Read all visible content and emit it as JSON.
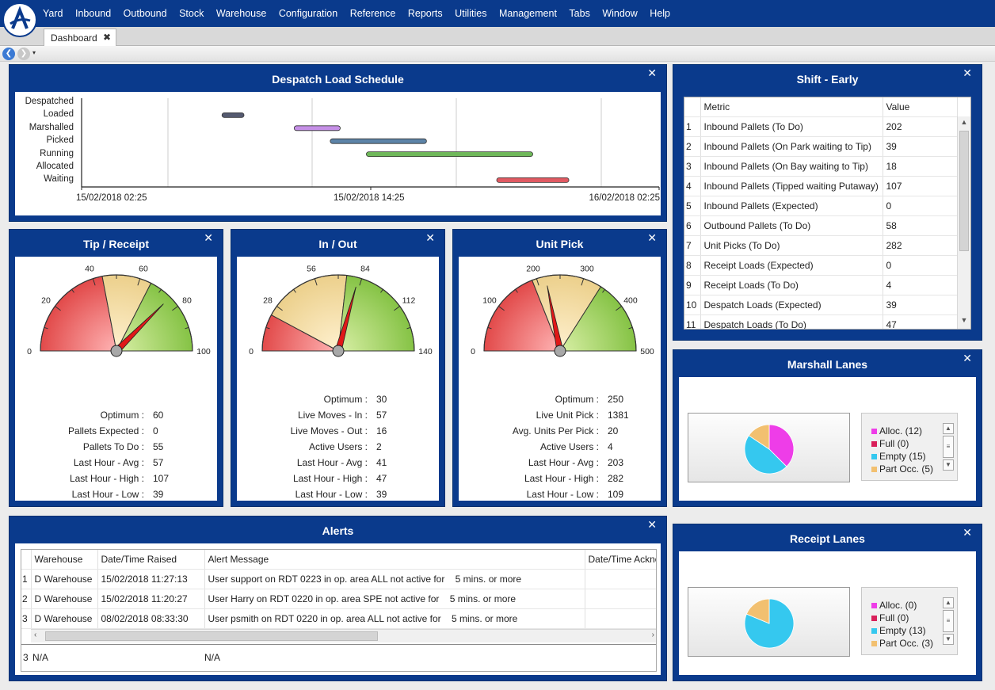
{
  "menu": [
    "Yard",
    "Inbound",
    "Outbound",
    "Stock",
    "Warehouse",
    "Configuration",
    "Reference",
    "Reports",
    "Utilities",
    "Management",
    "Tabs",
    "Window",
    "Help"
  ],
  "tab": {
    "label": "Dashboard",
    "close": "✖"
  },
  "nav": {
    "back": "❮",
    "forward": "❯",
    "dropdown": "▾"
  },
  "close_glyph": "✕",
  "despatch": {
    "title": "Despatch Load Schedule",
    "lanes": [
      "Despatched",
      "Loaded",
      "Marshalled",
      "Picked",
      "Running",
      "Allocated",
      "Waiting"
    ],
    "ticks": [
      "15/02/2018 02:25",
      "15/02/2018 14:25",
      "16/02/2018 02:25"
    ]
  },
  "chart_data": {
    "type": "gantt",
    "title": "Despatch Load Schedule",
    "x_range": [
      "15/02/2018 02:25",
      "16/02/2018 02:25"
    ],
    "bars": [
      {
        "lane": "Loaded",
        "start": "15/02/2018 08:15",
        "end": "15/02/2018 09:10",
        "color": "#555a70"
      },
      {
        "lane": "Marshalled",
        "start": "15/02/2018 11:15",
        "end": "15/02/2018 13:10",
        "color": "#c58fe6"
      },
      {
        "lane": "Picked",
        "start": "15/02/2018 12:45",
        "end": "15/02/2018 16:45",
        "color": "#5d84a8"
      },
      {
        "lane": "Running",
        "start": "15/02/2018 14:15",
        "end": "15/02/2018 21:10",
        "color": "#6fb85a"
      },
      {
        "lane": "Waiting",
        "start": "15/02/2018 19:40",
        "end": "15/02/2018 22:40",
        "color": "#e05a62"
      }
    ]
  },
  "gauges": [
    {
      "title": "Tip / Receipt",
      "max": 100,
      "needle": 75,
      "optimum": 60,
      "labels": [
        {
          "t": "0",
          "v": 0
        },
        {
          "t": "20",
          "v": 20
        },
        {
          "t": "40",
          "v": 40
        },
        {
          "t": "60",
          "v": 60
        },
        {
          "t": "80",
          "v": 80
        },
        {
          "t": "100",
          "v": 100
        }
      ],
      "bands": [
        [
          0,
          44
        ],
        [
          44,
          65
        ],
        [
          65,
          100
        ]
      ],
      "stats": [
        {
          "label": "Optimum :",
          "value": "60"
        },
        {
          "label": "Pallets Expected :",
          "value": "0"
        },
        {
          "label": "Pallets To Do :",
          "value": "55"
        },
        {
          "label": "Last Hour - Avg :",
          "value": "57"
        },
        {
          "label": "Last Hour - High :",
          "value": "107"
        },
        {
          "label": "Last Hour - Low :",
          "value": "39"
        }
      ]
    },
    {
      "title": "In / Out",
      "max": 140,
      "needle": 82,
      "optimum": 30,
      "labels": [
        {
          "t": "0",
          "v": 0
        },
        {
          "t": "28",
          "v": 28
        },
        {
          "t": "56",
          "v": 56
        },
        {
          "t": "84",
          "v": 84
        },
        {
          "t": "112",
          "v": 112
        },
        {
          "t": "140",
          "v": 140
        }
      ],
      "bands": [
        [
          0,
          22
        ],
        [
          22,
          75
        ],
        [
          75,
          140
        ]
      ],
      "stats": [
        {
          "label": "Optimum :",
          "value": "30"
        },
        {
          "label": "Live Moves - In :",
          "value": "57"
        },
        {
          "label": "Live Moves - Out :",
          "value": "16"
        },
        {
          "label": "Active Users :",
          "value": "2"
        },
        {
          "label": "Last Hour - Avg :",
          "value": "41"
        },
        {
          "label": "Last Hour - High :",
          "value": "47"
        },
        {
          "label": "Last Hour - Low :",
          "value": "39"
        }
      ]
    },
    {
      "title": "Unit Pick",
      "max": 500,
      "needle": 219,
      "optimum": 250,
      "labels": [
        {
          "t": "0",
          "v": 0
        },
        {
          "t": "100",
          "v": 100
        },
        {
          "t": "200",
          "v": 200
        },
        {
          "t": "300",
          "v": 300
        },
        {
          "t": "400",
          "v": 400
        },
        {
          "t": "500",
          "v": 500
        }
      ],
      "bands": [
        [
          0,
          190
        ],
        [
          190,
          340
        ],
        [
          340,
          500
        ]
      ],
      "stats": [
        {
          "label": "Optimum :",
          "value": "250"
        },
        {
          "label": "Live Unit Pick :",
          "value": "1381"
        },
        {
          "label": "Avg. Units Per Pick :",
          "value": "20"
        },
        {
          "label": "Active Users :",
          "value": "4"
        },
        {
          "label": "Last Hour - Avg :",
          "value": "203"
        },
        {
          "label": "Last Hour - High :",
          "value": "282"
        },
        {
          "label": "Last Hour - Low :",
          "value": "109"
        }
      ]
    }
  ],
  "shift": {
    "title": "Shift - Early",
    "headers": [
      "Metric",
      "Value"
    ],
    "rows": [
      {
        "n": "1",
        "metric": "Inbound Pallets (To Do)",
        "value": "202"
      },
      {
        "n": "2",
        "metric": "Inbound Pallets (On Park waiting to Tip)",
        "value": "39"
      },
      {
        "n": "3",
        "metric": "Inbound Pallets (On Bay waiting to Tip)",
        "value": "18"
      },
      {
        "n": "4",
        "metric": "Inbound Pallets (Tipped waiting Putaway)",
        "value": "107"
      },
      {
        "n": "5",
        "metric": "Inbound Pallets (Expected)",
        "value": "0"
      },
      {
        "n": "6",
        "metric": "Outbound Pallets (To Do)",
        "value": "58"
      },
      {
        "n": "7",
        "metric": "Unit Picks (To Do)",
        "value": "282"
      },
      {
        "n": "8",
        "metric": "Receipt Loads (Expected)",
        "value": "0"
      },
      {
        "n": "9",
        "metric": "Receipt Loads (To Do)",
        "value": "4"
      },
      {
        "n": "10",
        "metric": "Despatch Loads (Expected)",
        "value": "39"
      },
      {
        "n": "11",
        "metric": "Despatch Loads (To Do)",
        "value": "47"
      }
    ]
  },
  "marshall": {
    "title": "Marshall Lanes",
    "legend": [
      {
        "label": "Alloc. (12)",
        "value": 12,
        "color": "#ee3de8"
      },
      {
        "label": "Full (0)",
        "value": 0,
        "color": "#d9205a"
      },
      {
        "label": "Empty (15)",
        "value": 15,
        "color": "#35c8ef"
      },
      {
        "label": "Part Occ. (5)",
        "value": 5,
        "color": "#f2c070"
      }
    ]
  },
  "receipt": {
    "title": "Receipt Lanes",
    "legend": [
      {
        "label": "Alloc. (0)",
        "value": 0,
        "color": "#ee3de8"
      },
      {
        "label": "Full (0)",
        "value": 0,
        "color": "#d9205a"
      },
      {
        "label": "Empty (13)",
        "value": 13,
        "color": "#35c8ef"
      },
      {
        "label": "Part Occ. (3)",
        "value": 3,
        "color": "#f2c070"
      }
    ]
  },
  "alerts": {
    "title": "Alerts",
    "headers": [
      "Warehouse",
      "Date/Time Raised",
      "Alert Message",
      "Date/Time Ackno"
    ],
    "rows": [
      {
        "n": "1",
        "wh": "D Warehouse",
        "dt": "15/02/2018 11:27:13",
        "msg": "User support on RDT 0223 in op. area ALL not active for    5 mins. or more"
      },
      {
        "n": "2",
        "wh": "D Warehouse",
        "dt": "15/02/2018 11:20:27",
        "msg": "User Harry on RDT 0220 in op. area SPE not active for    5 mins. or more"
      },
      {
        "n": "3",
        "wh": "D Warehouse",
        "dt": "08/02/2018 08:33:30",
        "msg": "User psmith on RDT 0220 in op. area ALL not active for    5 mins. or more"
      }
    ],
    "footer": {
      "n": "3",
      "wh": "N/A",
      "msg": "N/A"
    }
  }
}
